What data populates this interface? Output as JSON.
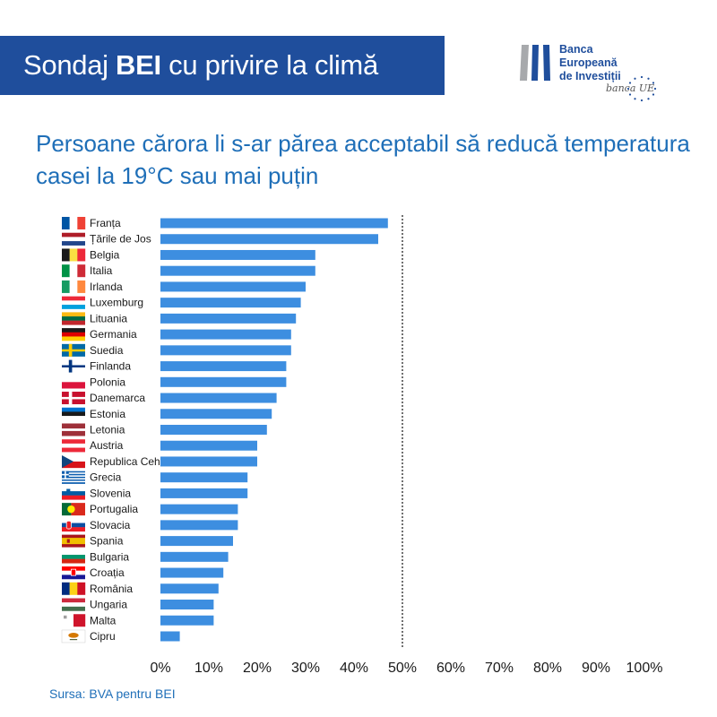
{
  "header": {
    "title_pre": "Sondaj ",
    "title_bold": "BEI",
    "title_post": " cu privire la climă"
  },
  "logo": {
    "lines": [
      "Banca",
      "Europeană",
      "de Investiții"
    ],
    "tagline": "banca UE",
    "colors": {
      "bar_gray": "#a7a9ac",
      "bar_blue": "#1f4e9c",
      "stars": "#1f4e9c"
    }
  },
  "chart_data": {
    "type": "bar",
    "orientation": "horizontal",
    "title": "Persoane cărora li s-ar părea acceptabil să reducă temperatura casei la 19°C sau mai puțin",
    "categories": [
      "Franța",
      "Țările de Jos",
      "Belgia",
      "Italia",
      "Irlanda",
      "Luxemburg",
      "Lituania",
      "Germania",
      "Suedia",
      "Finlanda",
      "Polonia",
      "Danemarca",
      "Estonia",
      "Letonia",
      "Austria",
      "Republica Cehă",
      "Grecia",
      "Slovenia",
      "Portugalia",
      "Slovacia",
      "Spania",
      "Bulgaria",
      "Croația",
      "România",
      "Ungaria",
      "Malta",
      "Cipru"
    ],
    "flags": [
      "flag-france",
      "flag-netherlands",
      "flag-belgium",
      "flag-italy",
      "flag-ireland",
      "flag-luxembourg",
      "flag-lithuania",
      "flag-germany",
      "flag-sweden",
      "flag-finland",
      "flag-poland",
      "flag-denmark",
      "flag-estonia",
      "flag-latvia",
      "flag-austria",
      "flag-czech-republic",
      "flag-greece",
      "flag-slovenia",
      "flag-portugal",
      "flag-slovakia",
      "flag-spain",
      "flag-bulgaria",
      "flag-croatia",
      "flag-romania",
      "flag-hungary",
      "flag-malta",
      "flag-cyprus"
    ],
    "values": [
      47,
      45,
      32,
      32,
      30,
      29,
      28,
      27,
      27,
      26,
      26,
      24,
      23,
      22,
      20,
      20,
      18,
      18,
      16,
      16,
      15,
      14,
      13,
      12,
      11,
      11,
      4
    ],
    "xlim": [
      0,
      100
    ],
    "xticks": [
      0,
      10,
      20,
      30,
      40,
      50,
      60,
      70,
      80,
      90,
      100
    ],
    "tick_labels": [
      "0%",
      "10%",
      "20%",
      "30%",
      "40%",
      "50%",
      "60%",
      "70%",
      "80%",
      "90%",
      "100%"
    ],
    "reference_line": 50,
    "grid": false,
    "colors": {
      "bar": "#3d8ee0",
      "axis_text": "#1a1a1a",
      "reference_line": "#333333"
    }
  },
  "footer": {
    "source": "Sursa: BVA pentru BEI"
  }
}
